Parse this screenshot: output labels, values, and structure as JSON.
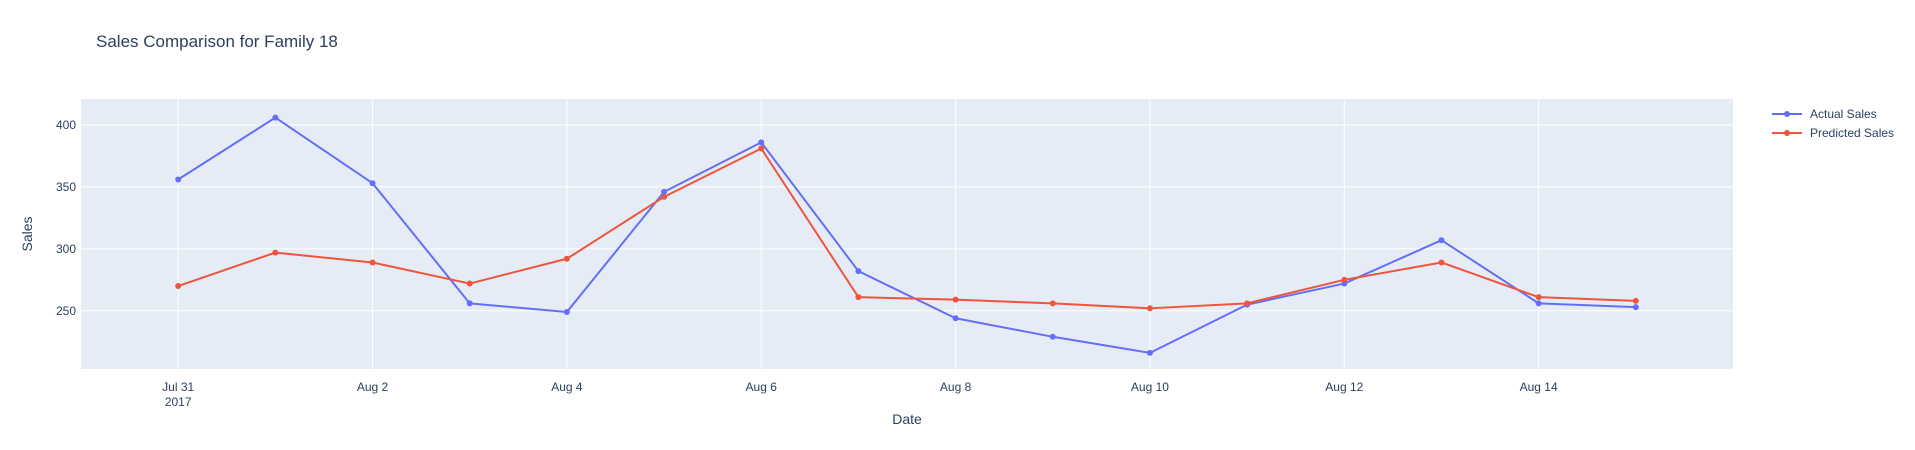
{
  "chart_data": {
    "type": "line",
    "title": "Sales Comparison for Family 18",
    "xlabel": "Date",
    "ylabel": "Sales",
    "x": [
      "2017-07-31",
      "2017-08-01",
      "2017-08-02",
      "2017-08-03",
      "2017-08-04",
      "2017-08-05",
      "2017-08-06",
      "2017-08-07",
      "2017-08-08",
      "2017-08-09",
      "2017-08-10",
      "2017-08-11",
      "2017-08-12",
      "2017-08-13",
      "2017-08-14",
      "2017-08-15"
    ],
    "x_ticks": [
      {
        "date": "2017-07-31",
        "label": "Jul 31",
        "sublabel": "2017"
      },
      {
        "date": "2017-08-02",
        "label": "Aug 2",
        "sublabel": ""
      },
      {
        "date": "2017-08-04",
        "label": "Aug 4",
        "sublabel": ""
      },
      {
        "date": "2017-08-06",
        "label": "Aug 6",
        "sublabel": ""
      },
      {
        "date": "2017-08-08",
        "label": "Aug 8",
        "sublabel": ""
      },
      {
        "date": "2017-08-10",
        "label": "Aug 10",
        "sublabel": ""
      },
      {
        "date": "2017-08-12",
        "label": "Aug 12",
        "sublabel": ""
      },
      {
        "date": "2017-08-14",
        "label": "Aug 14",
        "sublabel": ""
      }
    ],
    "y_ticks": [
      250,
      300,
      350,
      400
    ],
    "xlim": [
      "2017-07-30",
      "2017-08-16"
    ],
    "ylim": [
      203,
      421
    ],
    "grid": true,
    "legend_position": "top-right",
    "series": [
      {
        "name": "Actual Sales",
        "color": "#636efa",
        "values": [
          356,
          406,
          353,
          256,
          249,
          346,
          386,
          282,
          244,
          229,
          216,
          255,
          272,
          307,
          256,
          253
        ]
      },
      {
        "name": "Predicted Sales",
        "color": "#ef553b",
        "values": [
          270,
          297,
          289,
          272,
          292,
          342,
          381,
          261,
          259,
          256,
          252,
          256,
          275,
          289,
          261,
          258
        ]
      }
    ]
  },
  "colors": {
    "plot_background": "#e5ecf6",
    "grid": "#ffffff",
    "text": "#2a3f5f"
  }
}
